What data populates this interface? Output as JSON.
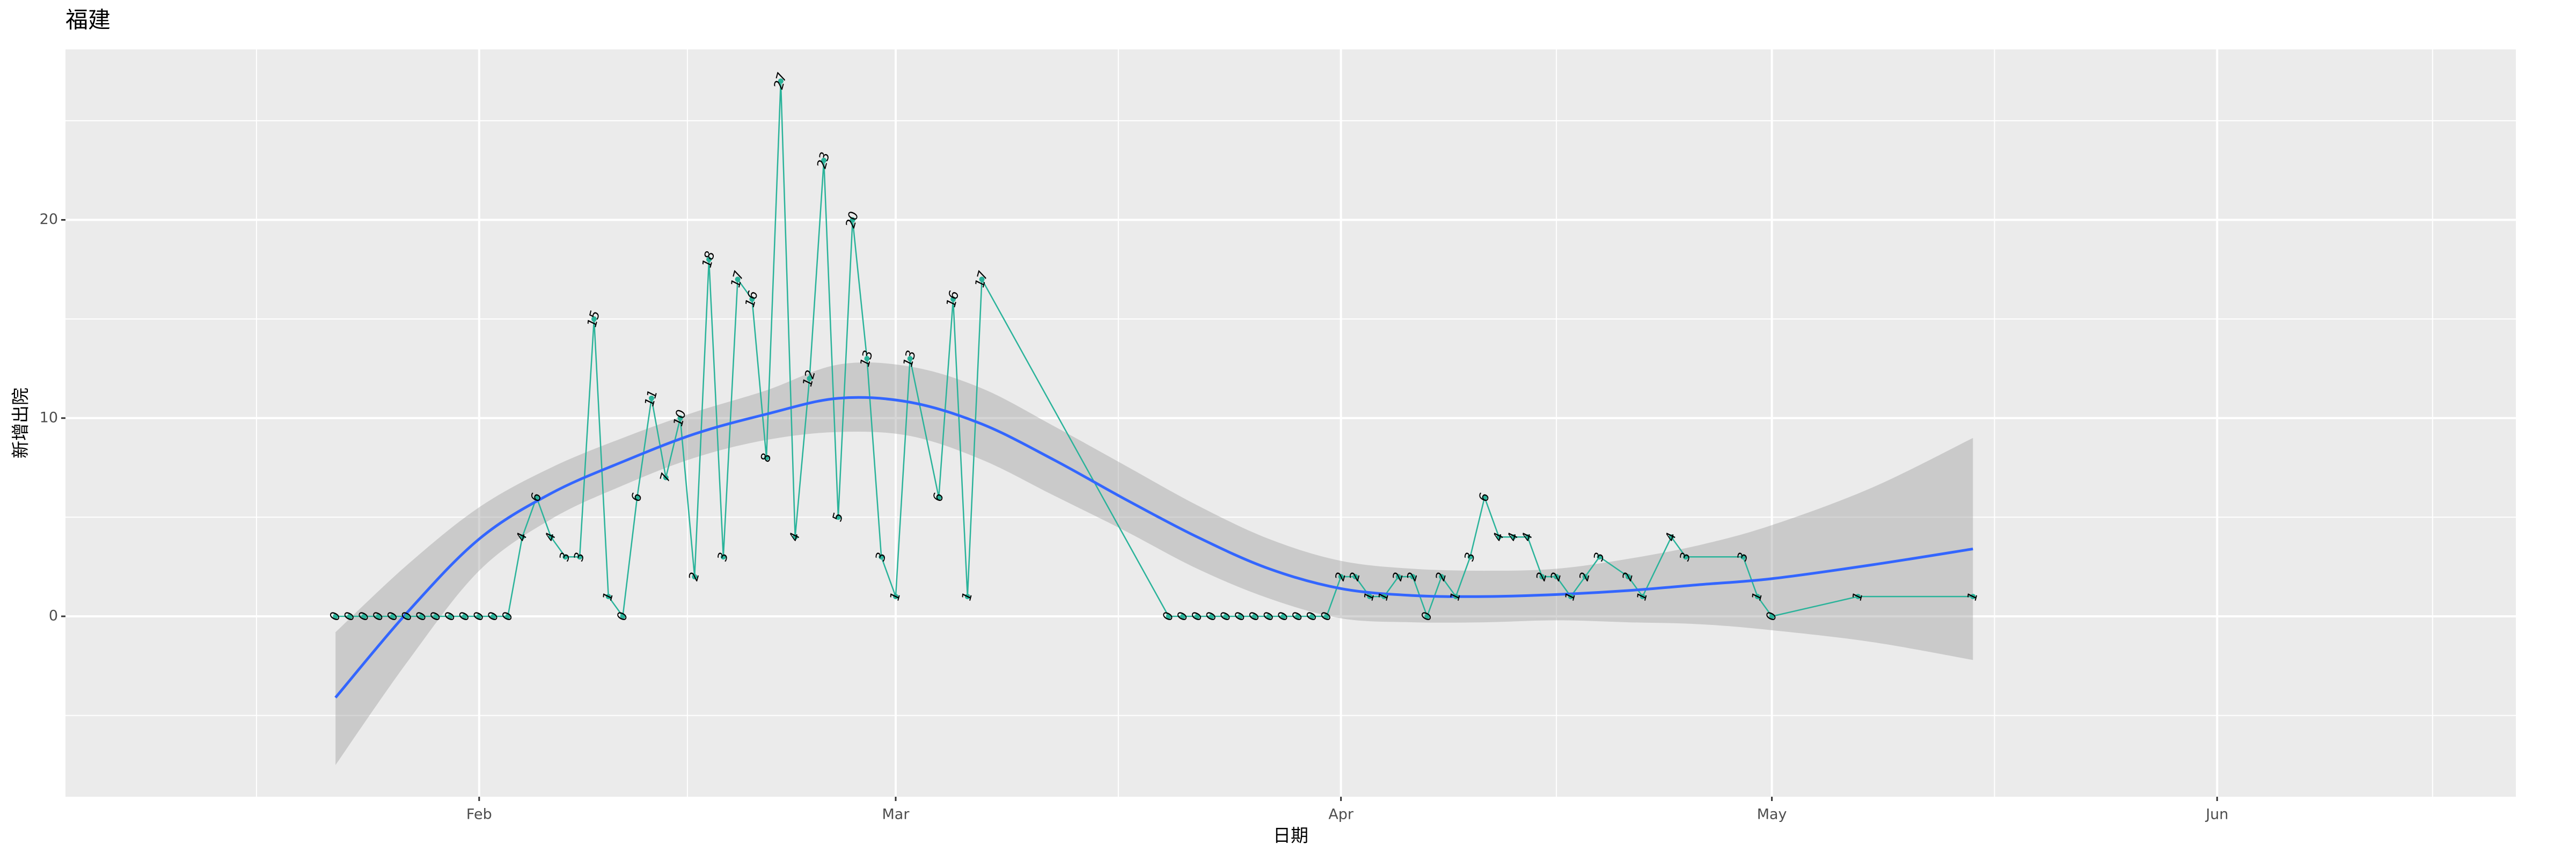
{
  "chart_data": {
    "type": "line",
    "title": "福建",
    "x_label": "日期",
    "y_label": "新增出院",
    "x": [
      22,
      23,
      24,
      25,
      26,
      27,
      28,
      29,
      30,
      31,
      32,
      33,
      34,
      35,
      36,
      37,
      38,
      39,
      40,
      41,
      42,
      43,
      44,
      45,
      46,
      47,
      48,
      49,
      50,
      51,
      52,
      53,
      54,
      55,
      56,
      57,
      58,
      59,
      60,
      61,
      62,
      64,
      65,
      66,
      67,
      80,
      81,
      82,
      83,
      84,
      85,
      86,
      87,
      88,
      89,
      90,
      91,
      92,
      93,
      94,
      95,
      96,
      97,
      98,
      99,
      100,
      101,
      102,
      103,
      104,
      105,
      106,
      107,
      108,
      109,
      110,
      112,
      113,
      115,
      116,
      120,
      121,
      122,
      128,
      136
    ],
    "values": [
      0,
      0,
      0,
      0,
      0,
      0,
      0,
      0,
      0,
      0,
      0,
      0,
      0,
      4,
      6,
      4,
      3,
      3,
      15,
      1,
      0,
      6,
      11,
      7,
      10,
      2,
      18,
      3,
      17,
      16,
      8,
      27,
      4,
      12,
      23,
      5,
      20,
      13,
      3,
      1,
      13,
      6,
      16,
      1,
      17,
      0,
      0,
      0,
      0,
      0,
      0,
      0,
      0,
      0,
      0,
      0,
      0,
      2,
      2,
      1,
      1,
      2,
      2,
      0,
      2,
      1,
      3,
      6,
      4,
      4,
      4,
      2,
      2,
      1,
      2,
      3,
      2,
      1,
      4,
      3,
      3,
      1,
      0,
      1,
      1
    ],
    "color": "#2ab39a",
    "smooth": {
      "x": [
        22,
        27,
        32,
        37,
        42,
        47,
        52,
        57,
        62,
        67,
        72,
        77,
        82,
        87,
        92,
        97,
        102,
        107,
        112,
        117,
        122,
        129,
        136
      ],
      "values": [
        -4.1,
        0.2,
        3.9,
        6.2,
        7.8,
        9.2,
        10.2,
        11.0,
        10.8,
        9.7,
        7.9,
        5.9,
        4.0,
        2.4,
        1.4,
        1.05,
        1.0,
        1.1,
        1.3,
        1.6,
        1.9,
        2.6,
        3.4
      ],
      "lower": [
        -7.5,
        -2.3,
        2.3,
        4.9,
        6.6,
        8.0,
        8.9,
        9.3,
        9.1,
        7.9,
        6.1,
        4.3,
        2.4,
        0.9,
        -0.1,
        -0.3,
        -0.3,
        -0.2,
        -0.3,
        -0.4,
        -0.7,
        -1.3,
        -2.2
      ],
      "upper": [
        -0.8,
        2.6,
        5.5,
        7.5,
        9.0,
        10.3,
        11.4,
        12.7,
        12.6,
        11.5,
        9.6,
        7.6,
        5.6,
        3.9,
        2.8,
        2.4,
        2.3,
        2.4,
        2.9,
        3.6,
        4.6,
        6.5,
        9.0
      ],
      "color": "#3366ff",
      "band_color": "#999999"
    },
    "xlim": [
      3.2,
      173.8
    ],
    "ylim": [
      -9.1,
      28.6
    ],
    "xticks": [
      {
        "value": 32,
        "label": "Feb"
      },
      {
        "value": 61,
        "label": "Mar"
      },
      {
        "value": 92,
        "label": "Apr"
      },
      {
        "value": 122,
        "label": "May"
      },
      {
        "value": 153,
        "label": "Jun"
      }
    ],
    "yticks": [
      0,
      10,
      20
    ],
    "xminor": [
      16.5,
      46.5,
      76.5,
      107,
      137.5,
      168
    ],
    "yminor": [
      -5,
      5,
      15,
      25
    ],
    "grid": true
  }
}
